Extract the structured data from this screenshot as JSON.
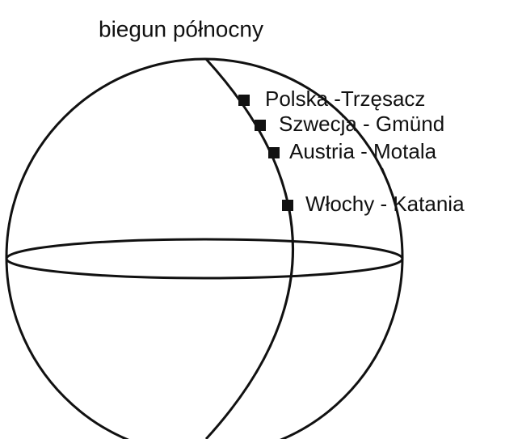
{
  "title": "biegun północny",
  "points": [
    {
      "label": "Polska -Trzęsacz"
    },
    {
      "label": "Szwecja - Gmünd"
    },
    {
      "label": "Austria - Motala"
    },
    {
      "label": "Włochy - Katania"
    }
  ]
}
